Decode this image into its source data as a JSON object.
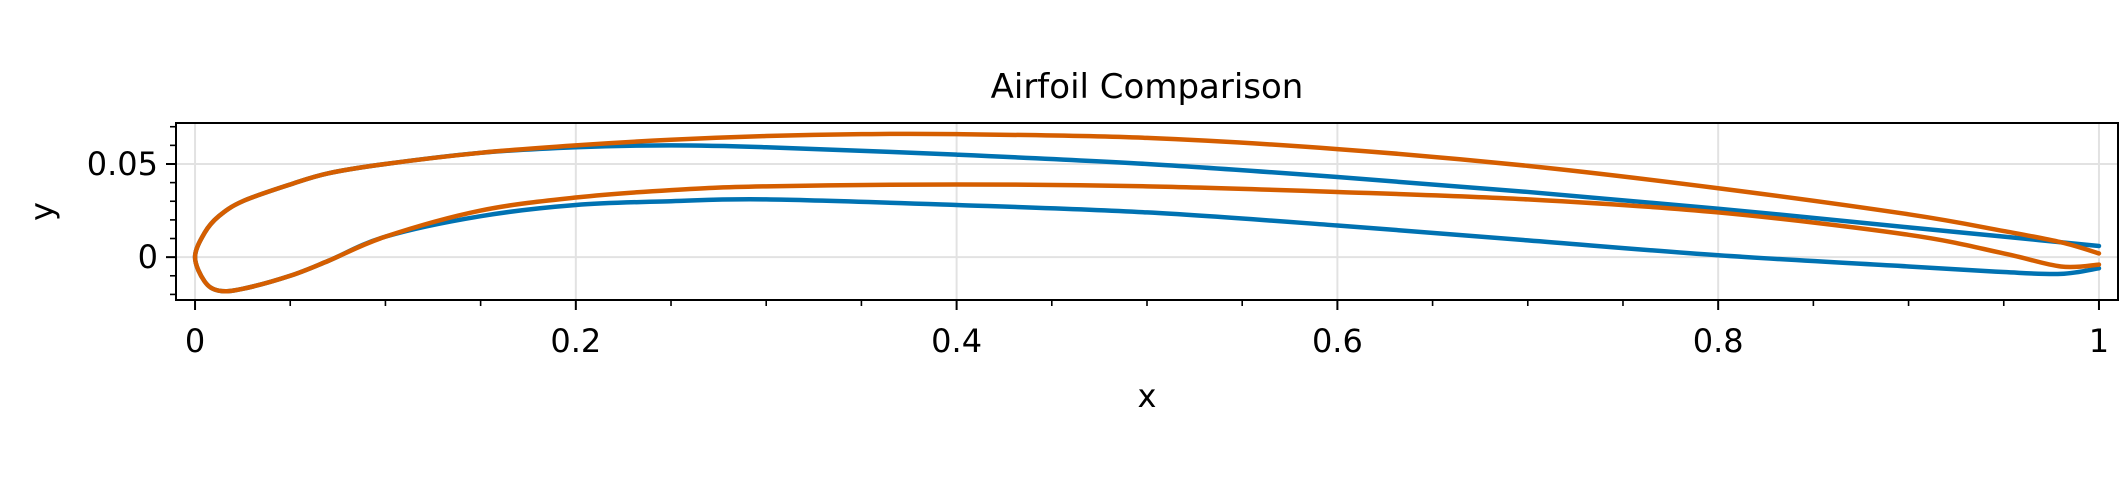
{
  "chart_data": {
    "type": "line",
    "title": "Airfoil Comparison",
    "xlabel": "x",
    "ylabel": "y",
    "xlim": [
      -0.01,
      1.01
    ],
    "ylim": [
      -0.023,
      0.072
    ],
    "xticks": [
      0,
      0.2,
      0.4,
      0.6,
      0.8,
      1
    ],
    "xtick_labels": [
      "0",
      "0.2",
      "0.4",
      "0.6",
      "0.8",
      "1"
    ],
    "yticks": [
      0,
      0.05
    ],
    "ytick_labels": [
      "0",
      "0.05"
    ],
    "grid": true,
    "legend": "none",
    "series": [
      {
        "color": "#0072B2",
        "x": [
          1.0,
          0.95,
          0.9,
          0.8,
          0.7,
          0.6,
          0.5,
          0.4,
          0.3,
          0.25,
          0.2,
          0.15,
          0.1,
          0.07,
          0.05,
          0.025,
          0.0125,
          0.005,
          0.0,
          0.005,
          0.0125,
          0.025,
          0.05,
          0.07,
          0.1,
          0.15,
          0.2,
          0.25,
          0.3,
          0.4,
          0.5,
          0.6,
          0.7,
          0.8,
          0.9,
          0.95,
          0.98,
          1.0
        ],
        "y": [
          0.006,
          0.011,
          0.016,
          0.026,
          0.035,
          0.043,
          0.05,
          0.055,
          0.059,
          0.06,
          0.059,
          0.056,
          0.05,
          0.045,
          0.039,
          0.03,
          0.022,
          0.013,
          0.0,
          -0.013,
          -0.018,
          -0.017,
          -0.01,
          -0.002,
          0.011,
          0.022,
          0.028,
          0.03,
          0.031,
          0.028,
          0.024,
          0.017,
          0.009,
          0.001,
          -0.005,
          -0.008,
          -0.009,
          -0.006
        ]
      },
      {
        "color": "#D55E00",
        "x": [
          1.0,
          0.98,
          0.95,
          0.9,
          0.8,
          0.7,
          0.6,
          0.5,
          0.4,
          0.35,
          0.3,
          0.25,
          0.2,
          0.15,
          0.1,
          0.07,
          0.05,
          0.025,
          0.0125,
          0.005,
          0.0,
          0.005,
          0.0125,
          0.025,
          0.05,
          0.07,
          0.1,
          0.15,
          0.2,
          0.25,
          0.3,
          0.4,
          0.5,
          0.6,
          0.7,
          0.8,
          0.9,
          0.95,
          0.98,
          1.0
        ],
        "y": [
          0.002,
          0.008,
          0.014,
          0.023,
          0.037,
          0.049,
          0.058,
          0.064,
          0.066,
          0.066,
          0.065,
          0.063,
          0.06,
          0.056,
          0.05,
          0.045,
          0.039,
          0.03,
          0.022,
          0.013,
          0.0,
          -0.013,
          -0.018,
          -0.017,
          -0.01,
          -0.002,
          0.011,
          0.025,
          0.032,
          0.036,
          0.038,
          0.039,
          0.038,
          0.035,
          0.031,
          0.024,
          0.012,
          0.002,
          -0.005,
          -0.004
        ]
      }
    ]
  }
}
